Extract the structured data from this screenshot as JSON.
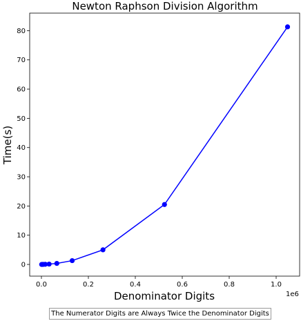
{
  "chart_data": {
    "type": "line",
    "title": "Newton Raphson Division Algorithm",
    "xlabel": "Denominator Digits",
    "ylabel": "Time(s)",
    "x_scale_label": "1e6",
    "xlim": [
      -0.05,
      1.1
    ],
    "ylim": [
      -4,
      86
    ],
    "x_ticks": [
      0.0,
      0.2,
      0.4,
      0.6,
      0.8,
      1.0
    ],
    "x_tick_labels": [
      "0.0",
      "0.2",
      "0.4",
      "0.6",
      "0.8",
      "1.0"
    ],
    "y_ticks": [
      0,
      10,
      20,
      30,
      40,
      50,
      60,
      70,
      80
    ],
    "y_tick_labels": [
      "0",
      "10",
      "20",
      "30",
      "40",
      "50",
      "60",
      "70",
      "80"
    ],
    "series": [
      {
        "color": "#0000ff",
        "x": [
          0.001024,
          0.002048,
          0.004096,
          0.008192,
          0.016384,
          0.032768,
          0.065536,
          0.131072,
          0.262144,
          0.524288,
          1.048576
        ],
        "y": [
          0.0,
          0.0,
          0.01,
          0.02,
          0.05,
          0.12,
          0.35,
          1.3,
          5.0,
          20.5,
          81.3
        ]
      }
    ],
    "grid": false,
    "legend": "none"
  },
  "caption": "The Numerator Digits are Always Twice the Denominator Digits"
}
